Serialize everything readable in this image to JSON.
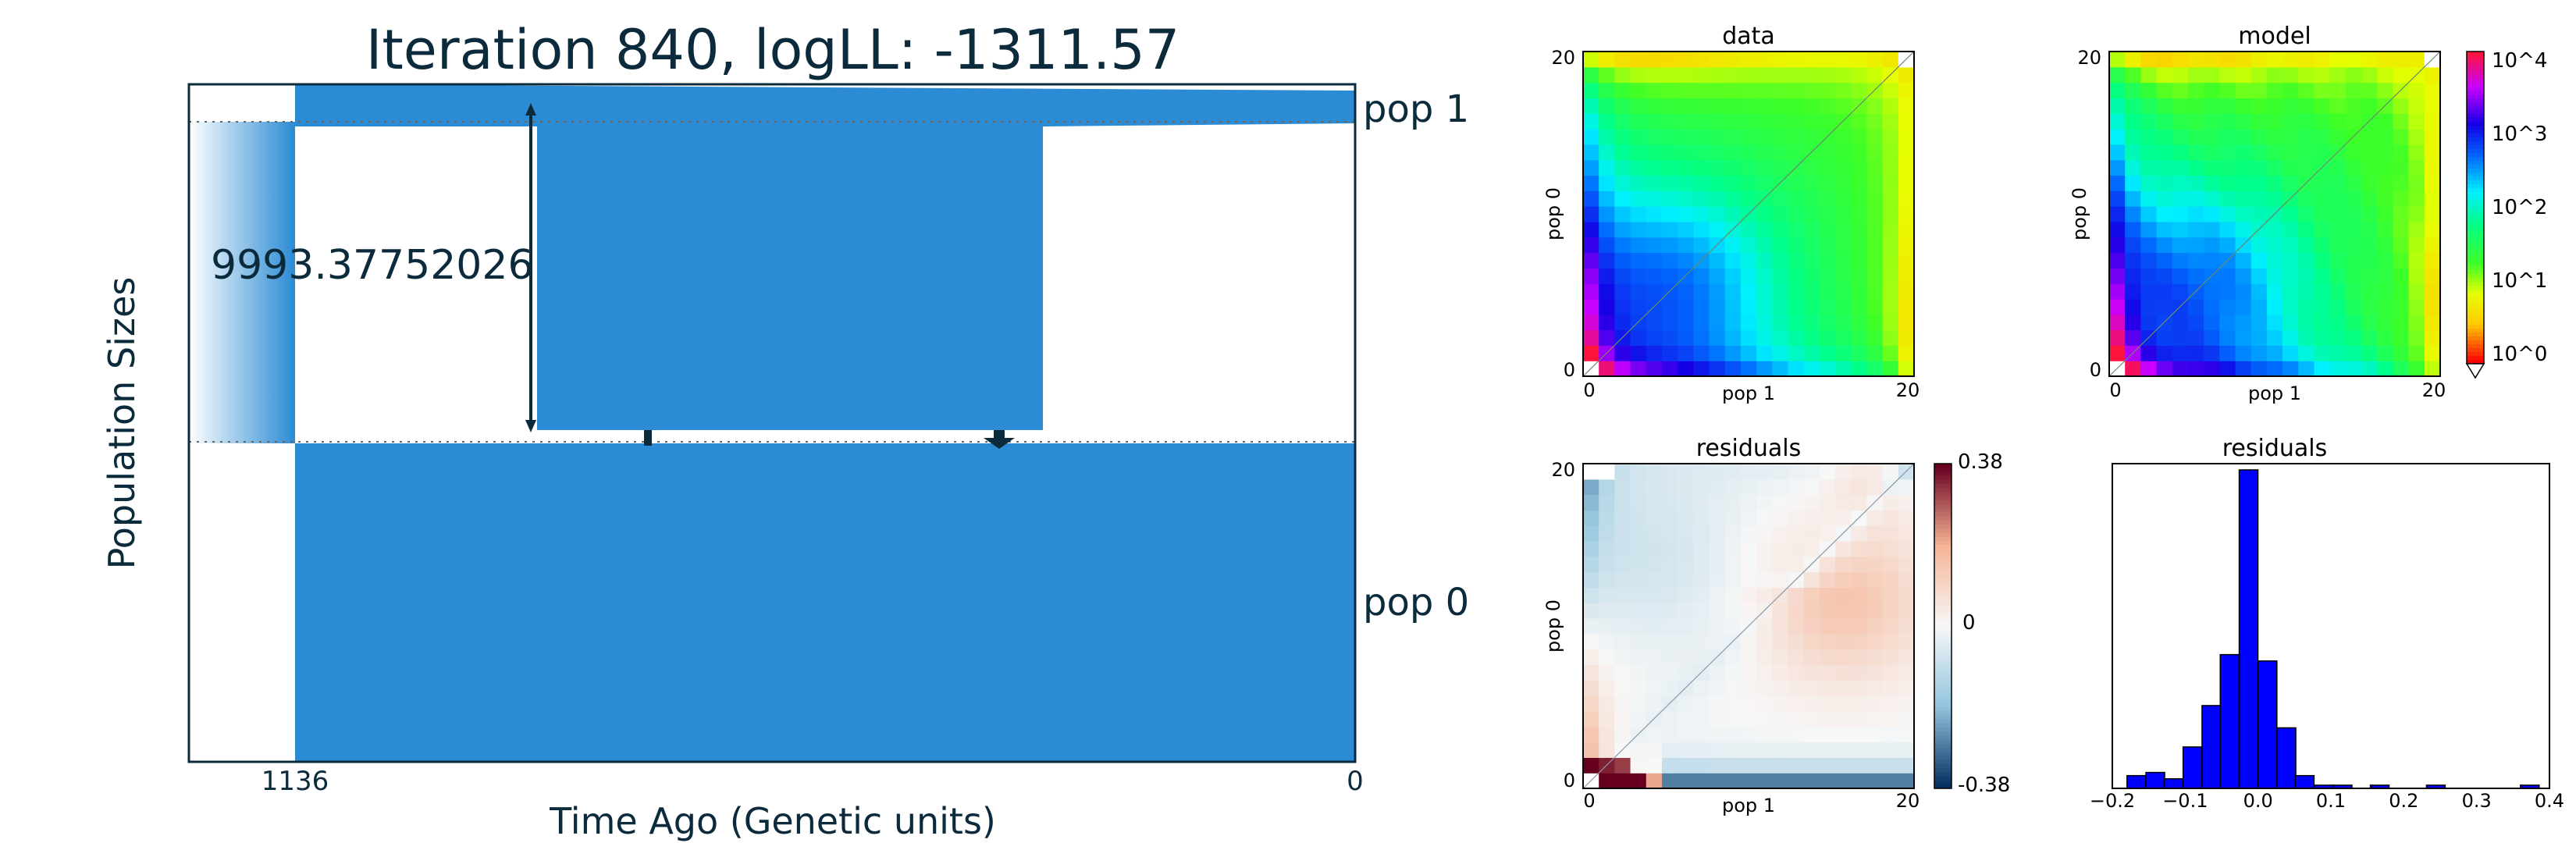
{
  "demography": {
    "title": "Iteration 840, logLL:   -1311.57",
    "xlabel": "Time Ago (Genetic units)",
    "ylabel": "Population Sizes",
    "x_tick_left": "1136",
    "x_tick_right": "0",
    "pop1_label": "pop 1",
    "pop0_label": "pop 0",
    "size_annotation": "9993.37752026",
    "color": "#2b8bd4"
  },
  "chart_data": [
    {
      "type": "heatmap",
      "title": "data",
      "xlabel": "pop 1",
      "ylabel": "pop 0",
      "x_ticks": [
        "0",
        "20"
      ],
      "y_ticks": [
        "0",
        "20"
      ],
      "grid_size": 21,
      "colorscale": "log spectral (red-yellow-green-cyan-blue-magenta)"
    },
    {
      "type": "heatmap",
      "title": "model",
      "xlabel": "pop 1",
      "ylabel": "pop 0",
      "x_ticks": [
        "0",
        "20"
      ],
      "y_ticks": [
        "0",
        "20"
      ],
      "grid_size": 21,
      "colorbar": {
        "labels": [
          "10^0",
          "10^1",
          "10^2",
          "10^3",
          "10^4"
        ],
        "scale": "log"
      }
    },
    {
      "type": "heatmap",
      "title": "residuals",
      "xlabel": "pop 1",
      "ylabel": "pop 0",
      "x_ticks": [
        "0",
        "20"
      ],
      "y_ticks": [
        "0",
        "20"
      ],
      "grid_size": 21,
      "colorbar": {
        "labels": [
          "0.38",
          "0",
          "-0.38"
        ],
        "range": [
          -0.38,
          0.38
        ],
        "scale": "diverging red-blue"
      }
    },
    {
      "type": "bar",
      "title": "residuals",
      "x_ticks": [
        "−0.2",
        "−0.1",
        "0.0",
        "0.1",
        "0.2",
        "0.3",
        "0.4"
      ],
      "xlim": [
        -0.2,
        0.4
      ],
      "bar_width": 0.0257,
      "bins": [
        -0.167,
        -0.141,
        -0.116,
        -0.09,
        -0.064,
        -0.039,
        -0.013,
        0.013,
        0.039,
        0.064,
        0.09,
        0.116,
        0.141,
        0.167,
        0.193,
        0.219,
        0.244,
        0.27,
        0.296,
        0.321,
        0.347,
        0.373
      ],
      "counts": [
        4,
        5,
        3,
        13,
        26,
        42,
        100,
        40,
        19,
        4,
        1,
        1,
        0,
        1,
        0,
        0,
        1,
        0,
        0,
        0,
        0,
        1
      ],
      "color": "#0000ff"
    }
  ]
}
